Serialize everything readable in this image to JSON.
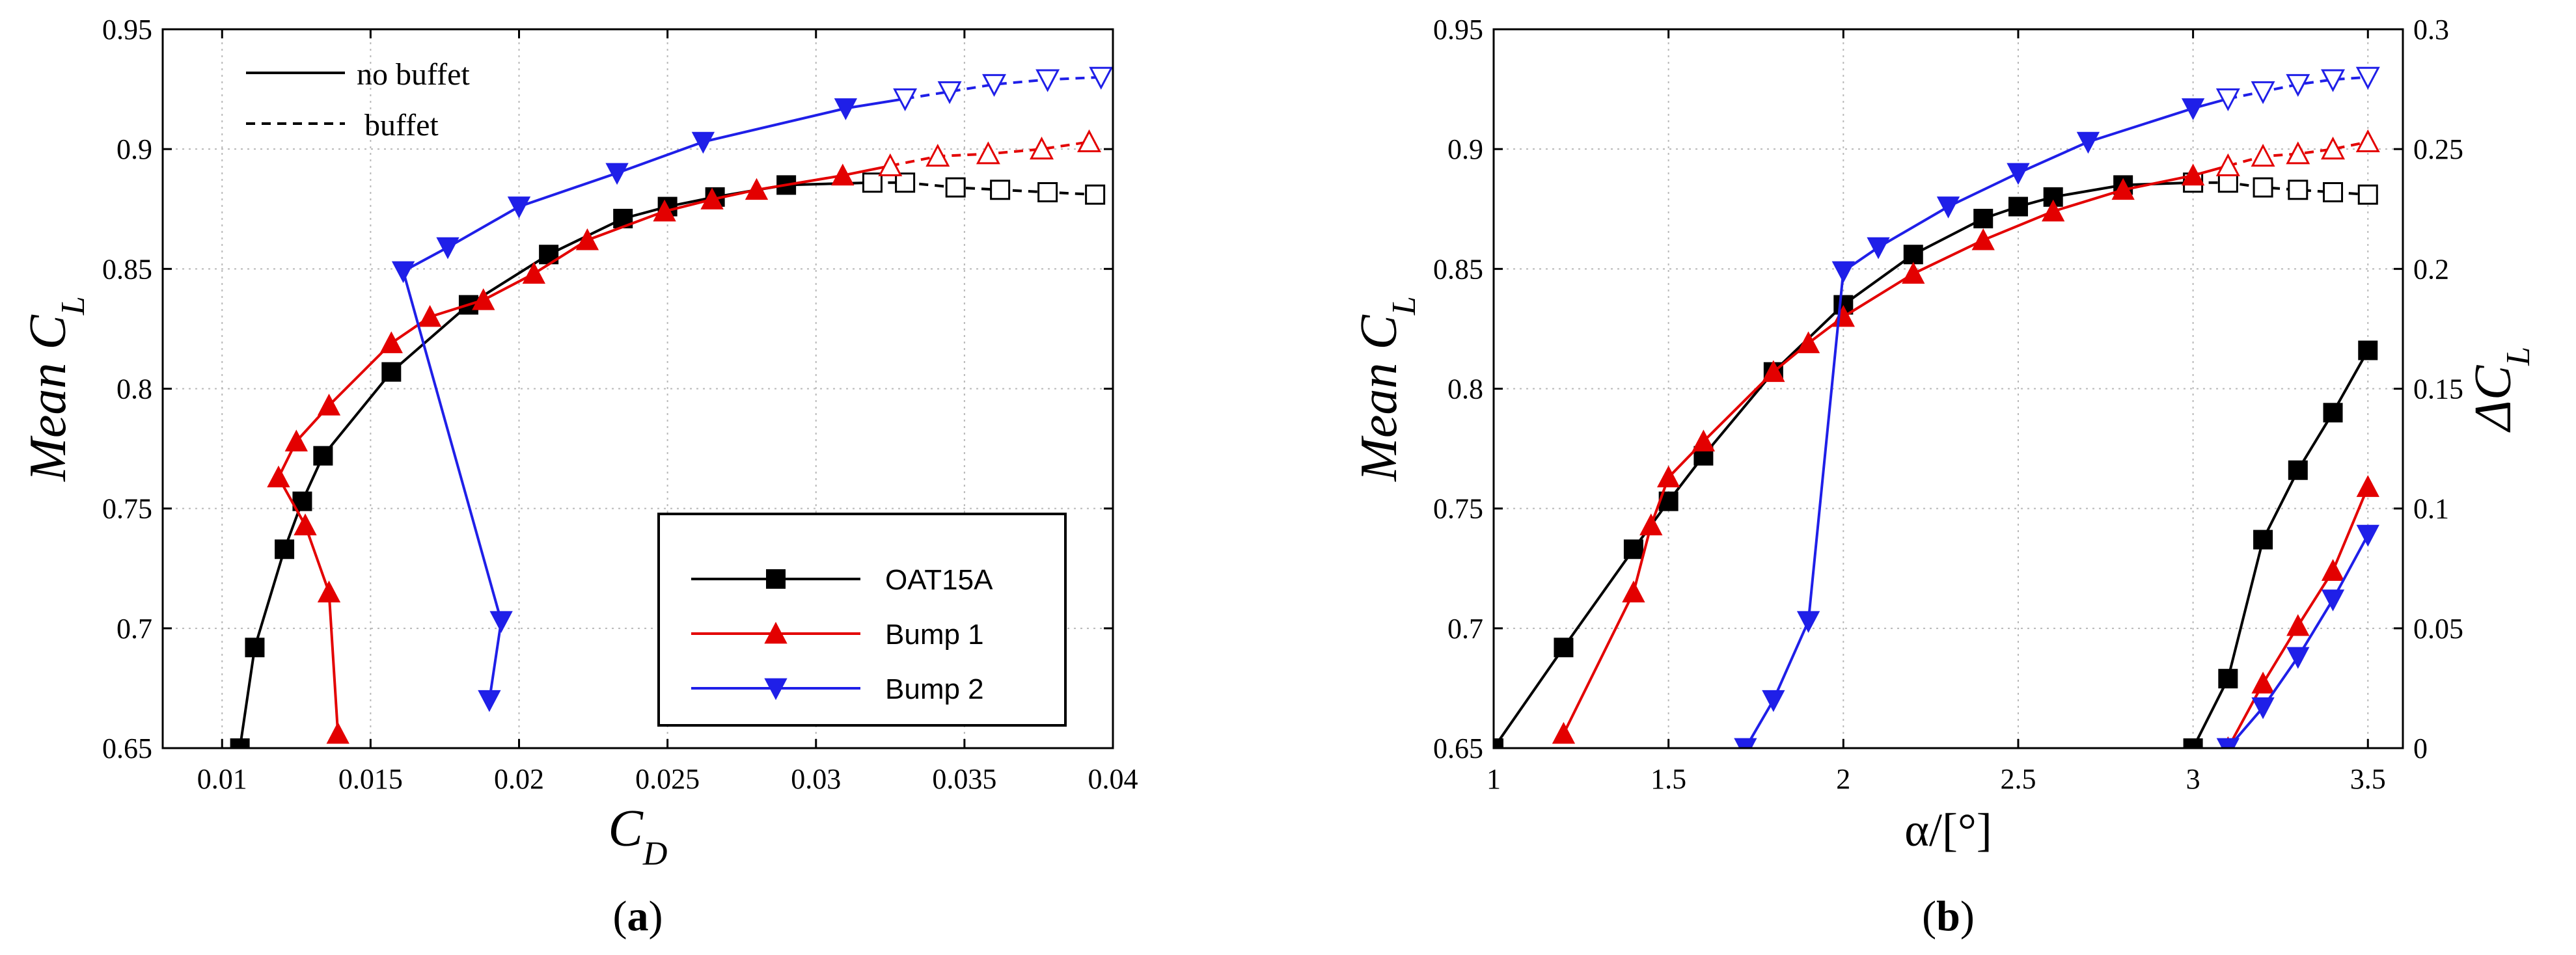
{
  "chart_data": [
    {
      "type": "line",
      "panel_label": "a",
      "xlabel": "C",
      "xlabel_sub": "D",
      "ylabel": "Mean C",
      "ylabel_sub": "L",
      "xlim": [
        0.008,
        0.04
      ],
      "ylim": [
        0.65,
        0.95
      ],
      "xticks": [
        0.01,
        0.015,
        0.02,
        0.025,
        0.03,
        0.035,
        0.04
      ],
      "xtick_labels": [
        "0.01",
        "0.015",
        "0.02",
        "0.025",
        "0.03",
        "0.035",
        "0.04"
      ],
      "yticks": [
        0.65,
        0.7,
        0.75,
        0.8,
        0.85,
        0.9,
        0.95
      ],
      "ytick_labels": [
        "0.65",
        "0.7",
        "0.75",
        "0.8",
        "0.85",
        "0.9",
        "0.95"
      ],
      "grid": true,
      "line_style_notes": {
        "solid": "no buffet",
        "dashed": "buffet"
      },
      "legend": {
        "position": "lower-right",
        "entries": [
          "OAT15A",
          "Bump 1",
          "Bump 2"
        ]
      },
      "series": [
        {
          "name": "OAT15A",
          "color": "#000000",
          "marker": "square",
          "x": [
            0.0106,
            0.0111,
            0.0121,
            0.0127,
            0.0134,
            0.0157,
            0.0183,
            0.021,
            0.0235,
            0.025,
            0.0266,
            0.029,
            0.0319
          ],
          "y": [
            0.65,
            0.692,
            0.733,
            0.753,
            0.772,
            0.807,
            0.835,
            0.856,
            0.871,
            0.876,
            0.88,
            0.885,
            0.886
          ]
        },
        {
          "name": "OAT15A buffet",
          "color": "#000000",
          "marker": "square-open",
          "dashed": true,
          "x": [
            0.0319,
            0.033,
            0.0347,
            0.0362,
            0.0378,
            0.0394
          ],
          "y": [
            0.886,
            0.886,
            0.884,
            0.883,
            0.882,
            0.881
          ]
        },
        {
          "name": "Bump 1",
          "color": "#e30000",
          "marker": "triangle-up",
          "x": [
            0.0139,
            0.0136,
            0.0128,
            0.0119,
            0.0125,
            0.0136,
            0.0157,
            0.017,
            0.0188,
            0.0205,
            0.0223,
            0.0249,
            0.0265,
            0.028,
            0.0309,
            0.0325
          ],
          "y": [
            0.656,
            0.715,
            0.743,
            0.763,
            0.778,
            0.793,
            0.819,
            0.83,
            0.837,
            0.848,
            0.862,
            0.874,
            0.879,
            0.883,
            0.889,
            0.893
          ]
        },
        {
          "name": "Bump 1 buffet",
          "color": "#e30000",
          "marker": "triangle-up-open",
          "dashed": true,
          "x": [
            0.0325,
            0.0341,
            0.0358,
            0.0376,
            0.0392
          ],
          "y": [
            0.893,
            0.897,
            0.898,
            0.9,
            0.903
          ]
        },
        {
          "name": "Bump 2",
          "color": "#1f1fe8",
          "marker": "triangle-down",
          "x": [
            0.019,
            0.0194,
            0.0161,
            0.0176,
            0.02,
            0.0233,
            0.0262,
            0.031,
            0.033
          ],
          "y": [
            0.67,
            0.703,
            0.849,
            0.859,
            0.876,
            0.89,
            0.903,
            0.917,
            0.921
          ]
        },
        {
          "name": "Bump 2 buffet",
          "color": "#1f1fe8",
          "marker": "triangle-down-open",
          "dashed": true,
          "x": [
            0.033,
            0.0345,
            0.036,
            0.0378,
            0.0396
          ],
          "y": [
            0.921,
            0.924,
            0.927,
            0.929,
            0.93
          ]
        }
      ]
    },
    {
      "type": "line",
      "panel_label": "b",
      "xlabel": "α/[°]",
      "ylabel": "Mean C",
      "ylabel_sub": "L",
      "y2label": "ΔC",
      "y2label_sub": "L",
      "xlim": [
        1,
        3.6
      ],
      "ylim": [
        0.65,
        0.95
      ],
      "y2lim": [
        0,
        0.3
      ],
      "xticks": [
        1,
        1.5,
        2,
        2.5,
        3,
        3.5
      ],
      "xtick_labels": [
        "1",
        "1.5",
        "2",
        "2.5",
        "3",
        "3.5"
      ],
      "yticks": [
        0.65,
        0.7,
        0.75,
        0.8,
        0.85,
        0.9,
        0.95
      ],
      "ytick_labels": [
        "0.65",
        "0.7",
        "0.75",
        "0.8",
        "0.85",
        "0.9",
        "0.95"
      ],
      "y2ticks": [
        0,
        0.05,
        0.1,
        0.15,
        0.2,
        0.25,
        0.3
      ],
      "y2tick_labels": [
        "0",
        "0.05",
        "0.1",
        "0.15",
        "0.2",
        "0.25",
        "0.3"
      ],
      "grid": true,
      "series": [
        {
          "name": "OAT15A",
          "color": "#000000",
          "marker": "square",
          "axis": "left",
          "x": [
            1.0,
            1.2,
            1.4,
            1.5,
            1.6,
            1.8,
            2.0,
            2.2,
            2.4,
            2.5,
            2.6,
            2.8,
            3.0
          ],
          "y": [
            0.65,
            0.692,
            0.733,
            0.753,
            0.772,
            0.807,
            0.835,
            0.856,
            0.871,
            0.876,
            0.88,
            0.885,
            0.886
          ]
        },
        {
          "name": "OAT15A buffet",
          "color": "#000000",
          "marker": "square-open",
          "dashed": true,
          "axis": "left",
          "x": [
            3.0,
            3.1,
            3.2,
            3.3,
            3.4,
            3.5
          ],
          "y": [
            0.886,
            0.886,
            0.884,
            0.883,
            0.882,
            0.881
          ]
        },
        {
          "name": "Bump 1",
          "color": "#e30000",
          "marker": "triangle-up",
          "axis": "left",
          "x": [
            1.2,
            1.4,
            1.45,
            1.5,
            1.6,
            1.8,
            1.9,
            2.0,
            2.2,
            2.4,
            2.6,
            2.8,
            3.0,
            3.1
          ],
          "y": [
            0.656,
            0.715,
            0.743,
            0.763,
            0.778,
            0.807,
            0.819,
            0.83,
            0.848,
            0.862,
            0.874,
            0.883,
            0.889,
            0.893
          ]
        },
        {
          "name": "Bump 1 buffet",
          "color": "#e30000",
          "marker": "triangle-up-open",
          "dashed": true,
          "axis": "left",
          "x": [
            3.1,
            3.2,
            3.3,
            3.4,
            3.5
          ],
          "y": [
            0.893,
            0.897,
            0.898,
            0.9,
            0.903
          ]
        },
        {
          "name": "Bump 2",
          "color": "#1f1fe8",
          "marker": "triangle-down",
          "axis": "left",
          "x": [
            1.72,
            1.8,
            1.9,
            2.0,
            2.1,
            2.3,
            2.5,
            2.7,
            3.0,
            3.1
          ],
          "y": [
            0.65,
            0.67,
            0.703,
            0.849,
            0.859,
            0.876,
            0.89,
            0.903,
            0.917,
            0.921
          ]
        },
        {
          "name": "Bump 2 buffet",
          "color": "#1f1fe8",
          "marker": "triangle-down-open",
          "dashed": true,
          "axis": "left",
          "x": [
            3.1,
            3.2,
            3.3,
            3.4,
            3.5
          ],
          "y": [
            0.921,
            0.924,
            0.927,
            0.929,
            0.93
          ]
        },
        {
          "name": "OAT15A ΔC_L",
          "color": "#000000",
          "marker": "square",
          "axis": "right",
          "x": [
            3.0,
            3.1,
            3.2,
            3.3,
            3.4,
            3.5
          ],
          "y": [
            0.0,
            0.029,
            0.087,
            0.116,
            0.14,
            0.166
          ]
        },
        {
          "name": "Bump 1 ΔC_L",
          "color": "#e30000",
          "marker": "triangle-up",
          "axis": "right",
          "x": [
            3.1,
            3.2,
            3.3,
            3.4,
            3.5
          ],
          "y": [
            0.0,
            0.027,
            0.051,
            0.074,
            0.109
          ]
        },
        {
          "name": "Bump 2 ΔC_L",
          "color": "#1f1fe8",
          "marker": "triangle-down",
          "axis": "right",
          "x": [
            3.1,
            3.2,
            3.3,
            3.4,
            3.5
          ],
          "y": [
            0.0,
            0.017,
            0.038,
            0.062,
            0.089
          ]
        }
      ]
    }
  ]
}
